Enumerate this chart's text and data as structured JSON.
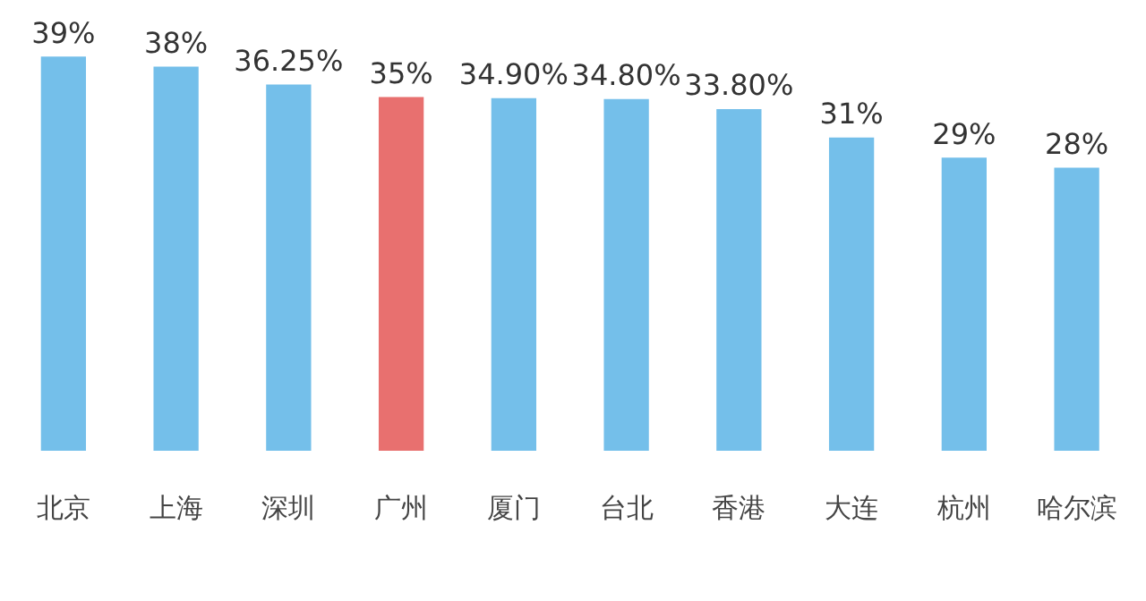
{
  "chart_data": {
    "type": "bar",
    "categories": [
      "北京",
      "上海",
      "深圳",
      "广州",
      "厦门",
      "台北",
      "香港",
      "大连",
      "杭州",
      "哈尔滨"
    ],
    "values": [
      39,
      38,
      36.25,
      35,
      34.9,
      34.8,
      33.8,
      31,
      29,
      28
    ],
    "value_labels": [
      "39%",
      "38%",
      "36.25%",
      "35%",
      "34.90%",
      "34.80%",
      "33.80%",
      "31%",
      "29%",
      "28%"
    ],
    "colors": [
      "#74bfea",
      "#74bfea",
      "#74bfea",
      "#e8706f",
      "#74bfea",
      "#74bfea",
      "#74bfea",
      "#74bfea",
      "#74bfea",
      "#74bfea"
    ],
    "tick_labels": "x",
    "grid": false,
    "legend": false
  }
}
